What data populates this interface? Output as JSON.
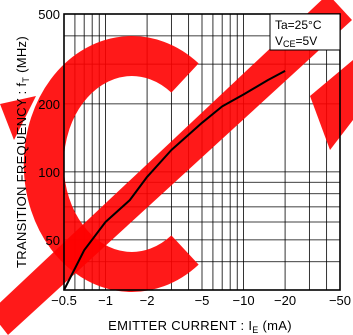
{
  "chart_data": {
    "type": "line",
    "x_scale": "log",
    "y_scale": "log",
    "xlabel_main": "EMITTER  CURRENT : I",
    "xlabel_sub": "E",
    "xlabel_unit": " (mA)",
    "ylabel_main": "TRANSITION  FREQUENCY : f",
    "ylabel_sub": "T",
    "ylabel_unit": " (MHz)",
    "xlim": [
      0.5,
      50
    ],
    "ylim": [
      30,
      500
    ],
    "x_ticks": [
      {
        "value": 0.5,
        "label": "−0.5"
      },
      {
        "value": 1,
        "label": "−1"
      },
      {
        "value": 2,
        "label": "−2"
      },
      {
        "value": 5,
        "label": "−5"
      },
      {
        "value": 10,
        "label": "−10"
      },
      {
        "value": 20,
        "label": "−20"
      },
      {
        "value": 50,
        "label": "−50"
      }
    ],
    "y_ticks": [
      {
        "value": 50,
        "label": "50"
      },
      {
        "value": 100,
        "label": "100"
      },
      {
        "value": 200,
        "label": "200"
      },
      {
        "value": 500,
        "label": "500"
      }
    ],
    "grid": true,
    "series": [
      {
        "x": [
          0.5,
          0.7,
          1.0,
          1.5,
          2.0,
          3.0,
          5.0,
          7.0,
          10.0,
          15.0,
          20.0
        ],
        "y": [
          30,
          45,
          60,
          75,
          95,
          125,
          165,
          195,
          220,
          255,
          280
        ]
      }
    ],
    "annotation": {
      "line1": "Ta=25°C",
      "line2_main": "V",
      "line2_sub": "CE",
      "line2_rest": "=5V"
    }
  },
  "watermark": {
    "text": "CT",
    "color": "#ff0000"
  }
}
